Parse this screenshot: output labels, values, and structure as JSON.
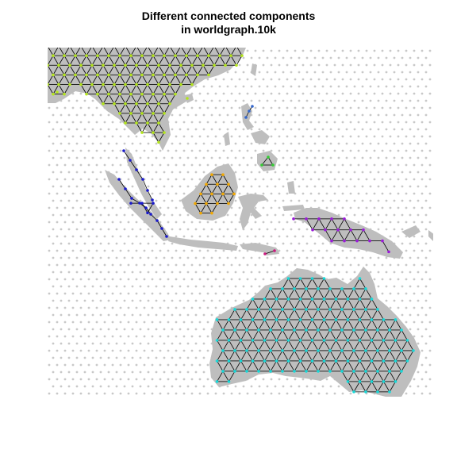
{
  "title": {
    "line1": "Different connected components",
    "line2": "in worldgraph.10k"
  },
  "colors": {
    "background": "#ffffff",
    "land": "#bebebe",
    "sea_points": "#c8c8c8",
    "edges": "#000000",
    "component_yellowgreen": "#b3e61a",
    "component_blue": "#1a1acc",
    "component_orange": "#f2a800",
    "component_purple": "#9a1ad9",
    "component_cyan": "#19d9d9",
    "component_steelblue": "#3366cc",
    "component_magenta": "#cc1a80",
    "component_green": "#33cc33"
  },
  "legend": []
}
